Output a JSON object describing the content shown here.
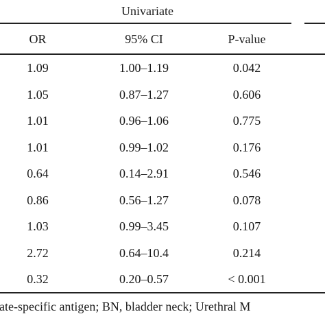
{
  "table": {
    "group_header": "Univariate",
    "columns": [
      "OR",
      "95% CI",
      "P-value"
    ],
    "rows": [
      {
        "or": "1.09",
        "ci": "1.00–1.19",
        "p": "0.042"
      },
      {
        "or": "1.05",
        "ci": "0.87–1.27",
        "p": "0.606"
      },
      {
        "or": "1.01",
        "ci": "0.96–1.06",
        "p": "0.775"
      },
      {
        "or": "1.01",
        "ci": "0.99–1.02",
        "p": "0.176"
      },
      {
        "or": "0.64",
        "ci": "0.14–2.91",
        "p": "0.546"
      },
      {
        "or": "0.86",
        "ci": "0.56–1.27",
        "p": "0.078"
      },
      {
        "or": "1.03",
        "ci": "0.99–3.45",
        "p": "0.107"
      },
      {
        "or": "2.72",
        "ci": "0.64–10.4",
        "p": "0.214"
      },
      {
        "or": "0.32",
        "ci": "0.20–0.57",
        "p": "< 0.001"
      }
    ]
  },
  "footnote": "rostate-specific antigen; BN, bladder neck; Urethral M"
}
